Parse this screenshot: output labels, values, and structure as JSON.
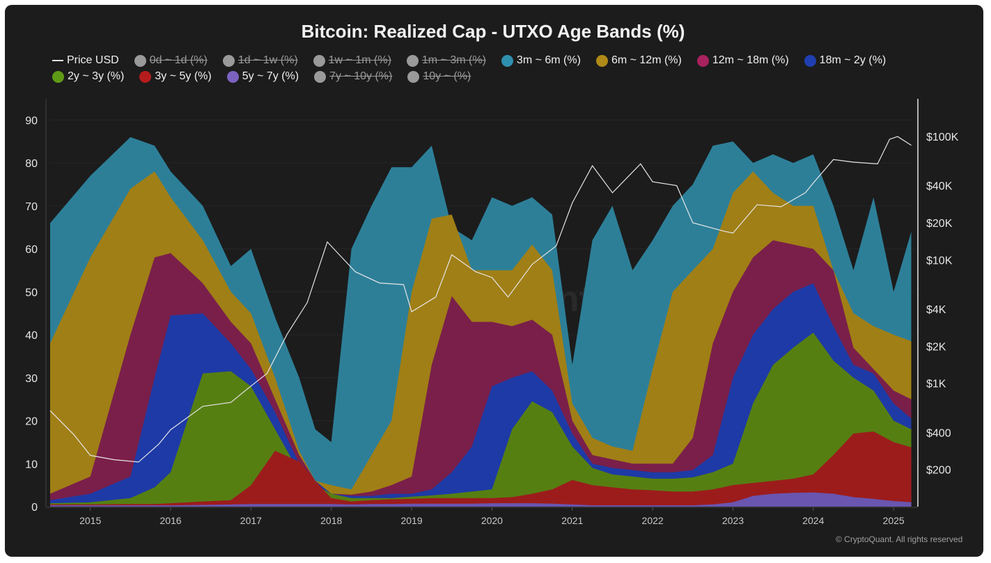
{
  "chart_data": {
    "type": "area",
    "title": "Bitcoin: Realized Cap - UTXO Age Bands (%)",
    "legend": [
      {
        "label": "Price USD",
        "kind": "line",
        "color": "#e6e6e6",
        "active": true
      },
      {
        "label": "0d ~ 1d (%)",
        "kind": "dot",
        "color": "#9a9a9a",
        "active": false
      },
      {
        "label": "1d ~ 1w (%)",
        "kind": "dot",
        "color": "#9a9a9a",
        "active": false
      },
      {
        "label": "1w ~ 1m (%)",
        "kind": "dot",
        "color": "#9a9a9a",
        "active": false
      },
      {
        "label": "1m ~ 3m (%)",
        "kind": "dot",
        "color": "#9a9a9a",
        "active": false
      },
      {
        "label": "3m ~ 6m (%)",
        "kind": "dot",
        "color": "#2f8fae",
        "active": true
      },
      {
        "label": "6m ~ 12m (%)",
        "kind": "dot",
        "color": "#b08a18",
        "active": true
      },
      {
        "label": "12m ~ 18m (%)",
        "kind": "dot",
        "color": "#a8225e",
        "active": true
      },
      {
        "label": "18m ~ 2y (%)",
        "kind": "dot",
        "color": "#1f3fb0",
        "active": true
      },
      {
        "label": "2y ~ 3y (%)",
        "kind": "dot",
        "color": "#5f9a16",
        "active": true
      },
      {
        "label": "3y ~ 5y (%)",
        "kind": "dot",
        "color": "#b51c1c",
        "active": true
      },
      {
        "label": "5y ~ 7y (%)",
        "kind": "dot",
        "color": "#7c62c0",
        "active": true
      },
      {
        "label": "7y ~ 10y (%)",
        "kind": "dot",
        "color": "#9a9a9a",
        "active": false
      },
      {
        "label": "10y ~ (%)",
        "kind": "dot",
        "color": "#9a9a9a",
        "active": false
      }
    ],
    "y_left": {
      "ticks": [
        0,
        10,
        20,
        30,
        40,
        50,
        60,
        70,
        80,
        90
      ],
      "ylim": [
        0,
        92
      ]
    },
    "y_right": {
      "tick_labels": [
        "$100K",
        "$40K",
        "$20K",
        "$10K",
        "$4K",
        "$2K",
        "$1K",
        "$400",
        "$200"
      ],
      "tick_values": [
        100000,
        40000,
        20000,
        10000,
        4000,
        2000,
        1000,
        400,
        200
      ],
      "scale": "log",
      "ylim": [
        100,
        160000
      ]
    },
    "x_ticks": [
      "2015",
      "2016",
      "2017",
      "2018",
      "2019",
      "2020",
      "2021",
      "2022",
      "2023",
      "2024",
      "2025"
    ],
    "xlim": [
      2014.5,
      2025.25
    ],
    "x": [
      2014.5,
      2015.0,
      2015.5,
      2015.8,
      2016.0,
      2016.4,
      2016.75,
      2017.0,
      2017.3,
      2017.6,
      2017.8,
      2018.0,
      2018.25,
      2018.5,
      2018.75,
      2019.0,
      2019.25,
      2019.5,
      2019.75,
      2020.0,
      2020.25,
      2020.5,
      2020.75,
      2021.0,
      2021.25,
      2021.5,
      2021.75,
      2022.0,
      2022.25,
      2022.5,
      2022.75,
      2023.0,
      2023.25,
      2023.5,
      2023.75,
      2024.0,
      2024.25,
      2024.5,
      2024.75,
      2025.0,
      2025.22
    ],
    "series": [
      {
        "name": "5y ~ 7y (%)",
        "color": "#6a55b0",
        "values": [
          0.3,
          0.3,
          0.3,
          0.3,
          0.3,
          0.4,
          0.5,
          0.6,
          0.6,
          0.6,
          0.6,
          0.6,
          0.5,
          0.6,
          0.6,
          0.7,
          0.7,
          0.7,
          0.7,
          0.8,
          0.8,
          0.8,
          0.7,
          0.5,
          0.3,
          0.3,
          0.3,
          0.3,
          0.3,
          0.3,
          0.5,
          1.0,
          2.5,
          3.0,
          3.2,
          3.3,
          3.0,
          2.2,
          1.8,
          1.3,
          1.0
        ]
      },
      {
        "name": "3y ~ 5y (%)",
        "color": "#9c1c1c",
        "values": [
          0.5,
          0.5,
          0.6,
          0.6,
          0.8,
          1.2,
          1.5,
          5.0,
          13.0,
          10.5,
          6.0,
          2.0,
          1.2,
          1.5,
          1.7,
          1.8,
          2.0,
          2.0,
          2.0,
          2.0,
          2.2,
          3.0,
          4.0,
          6.2,
          5.0,
          4.5,
          4.0,
          3.8,
          3.5,
          3.5,
          4.0,
          5.0,
          5.5,
          6.0,
          6.5,
          7.5,
          12.0,
          17.0,
          17.5,
          15.0,
          13.8
        ]
      },
      {
        "name": "2y ~ 3y (%)",
        "color": "#567f12",
        "values": [
          0.8,
          1.0,
          2.0,
          4.5,
          8.0,
          31.0,
          31.5,
          28.0,
          18.0,
          8.0,
          5.0,
          3.0,
          2.0,
          2.0,
          2.0,
          2.3,
          2.6,
          3.0,
          3.5,
          4.0,
          18.0,
          24.5,
          22.0,
          14.0,
          9.0,
          7.5,
          7.0,
          6.5,
          6.5,
          6.8,
          8.0,
          10.0,
          24.0,
          33.0,
          37.0,
          40.5,
          34.0,
          30.0,
          27.0,
          20.0,
          18.0
        ]
      },
      {
        "name": "18m ~ 2y (%)",
        "color": "#1e3aa6",
        "values": [
          1.5,
          3.0,
          7.0,
          30.0,
          44.5,
          45.0,
          38.0,
          32.0,
          22.0,
          10.0,
          6.0,
          3.0,
          2.5,
          2.5,
          3.0,
          3.0,
          4.0,
          8.0,
          14.0,
          28.0,
          30.0,
          31.5,
          27.0,
          17.0,
          10.0,
          9.0,
          8.5,
          8.0,
          8.0,
          8.5,
          12.0,
          30.0,
          40.0,
          46.0,
          50.0,
          52.0,
          42.0,
          33.0,
          31.0,
          24.0,
          20.5
        ]
      },
      {
        "name": "12m ~ 18m (%)",
        "color": "#7a1f4a",
        "values": [
          3.0,
          7.0,
          40.0,
          58.0,
          59.0,
          52.0,
          43.0,
          38.0,
          25.0,
          12.0,
          6.0,
          3.0,
          2.8,
          3.5,
          5.0,
          7.0,
          33.0,
          49.0,
          43.0,
          43.0,
          42.0,
          43.5,
          40.0,
          20.0,
          12.0,
          11.0,
          10.0,
          10.0,
          10.0,
          16.0,
          38.0,
          50.0,
          58.0,
          62.0,
          61.0,
          60.0,
          55.0,
          37.0,
          32.0,
          27.0,
          25.0
        ]
      },
      {
        "name": "6m ~ 12m (%)",
        "color": "#a07f16",
        "values": [
          38.0,
          58.0,
          74.0,
          78.0,
          72.0,
          62.0,
          50.0,
          45.0,
          30.0,
          13.0,
          6.0,
          5.0,
          4.0,
          12.0,
          20.0,
          50.0,
          67.0,
          68.0,
          55.0,
          55.0,
          55.0,
          61.0,
          55.0,
          24.0,
          16.0,
          14.0,
          13.0,
          32.0,
          50.0,
          55.0,
          60.0,
          73.0,
          78.0,
          73.0,
          70.0,
          70.0,
          55.0,
          45.0,
          42.0,
          40.0,
          38.5
        ]
      },
      {
        "name": "3m ~ 6m (%)",
        "color": "#2d7f98",
        "values": [
          66.0,
          77.0,
          86.0,
          84.0,
          78.0,
          70.0,
          56.0,
          60.0,
          44.0,
          30.0,
          18.0,
          15.0,
          60.0,
          70.0,
          79.0,
          79.0,
          84.0,
          65.0,
          62.0,
          72.0,
          70.0,
          72.0,
          68.0,
          33.0,
          62.0,
          70.0,
          55.0,
          62.0,
          70.0,
          75.0,
          84.0,
          85.0,
          80.0,
          82.0,
          80.0,
          82.0,
          70.0,
          55.0,
          72.0,
          50.0,
          64.0
        ]
      }
    ],
    "price": {
      "name": "Price USD",
      "color": "#e6e6e6",
      "x": [
        2014.5,
        2014.8,
        2015.0,
        2015.3,
        2015.6,
        2015.85,
        2016.0,
        2016.4,
        2016.75,
        2017.0,
        2017.2,
        2017.45,
        2017.7,
        2017.95,
        2018.1,
        2018.3,
        2018.6,
        2018.9,
        2019.0,
        2019.3,
        2019.5,
        2019.8,
        2020.0,
        2020.2,
        2020.5,
        2020.8,
        2021.0,
        2021.25,
        2021.5,
        2021.85,
        2022.0,
        2022.3,
        2022.5,
        2022.9,
        2023.0,
        2023.3,
        2023.6,
        2023.9,
        2024.0,
        2024.25,
        2024.5,
        2024.8,
        2024.95,
        2025.05,
        2025.22
      ],
      "values": [
        600,
        380,
        260,
        240,
        230,
        320,
        420,
        650,
        700,
        950,
        1200,
        2500,
        4500,
        14000,
        11000,
        8000,
        6500,
        6300,
        3800,
        5000,
        11000,
        8000,
        7200,
        5000,
        9200,
        13000,
        29000,
        58000,
        35000,
        60000,
        43000,
        40000,
        20000,
        17000,
        16500,
        28000,
        27000,
        35000,
        42000,
        65000,
        62000,
        60000,
        95000,
        100000,
        85000
      ]
    }
  },
  "watermark": "CryptoQuant",
  "credit": "© CryptoQuant. All rights reserved"
}
